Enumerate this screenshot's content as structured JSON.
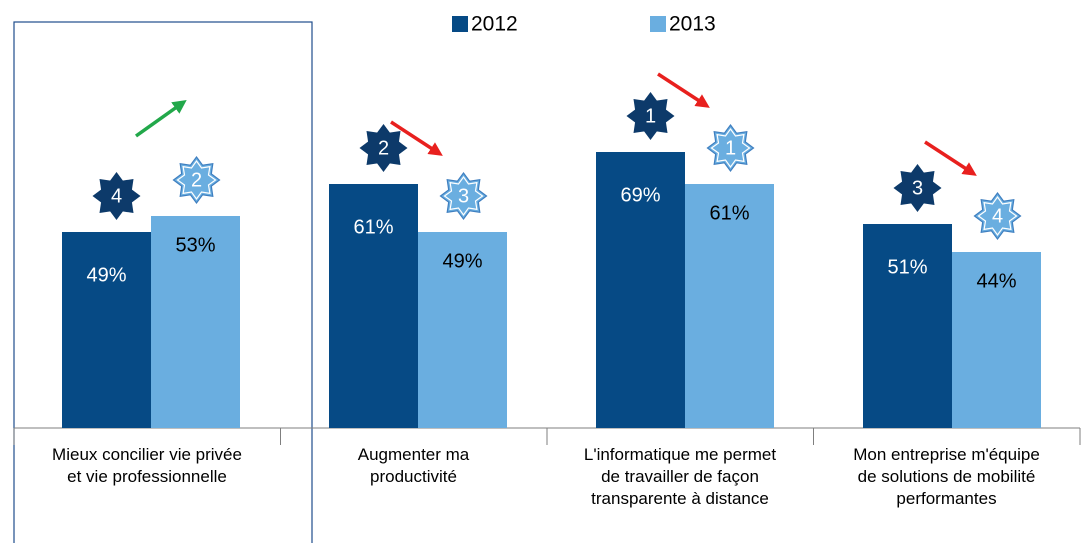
{
  "chart_data": {
    "type": "bar",
    "categories": [
      "Mieux concilier vie privée\net vie professionnelle",
      "Augmenter ma\nproductivité",
      "L'informatique me permet\nde travailler de façon\ntransparente à distance",
      "Mon entreprise m'équipe\nde solutions de mobilité\nperformantes"
    ],
    "series": [
      {
        "name": "2012",
        "color": "#064a85",
        "values": [
          49,
          61,
          69,
          51
        ],
        "value_labels": [
          "49%",
          "61%",
          "69%",
          "51%"
        ],
        "ranks": [
          4,
          2,
          1,
          3
        ]
      },
      {
        "name": "2013",
        "color": "#6aaee0",
        "values": [
          53,
          49,
          61,
          44
        ],
        "value_labels": [
          "53%",
          "49%",
          "61%",
          "44%"
        ],
        "ranks": [
          2,
          3,
          1,
          4
        ]
      }
    ],
    "legend": "top"
  }
}
